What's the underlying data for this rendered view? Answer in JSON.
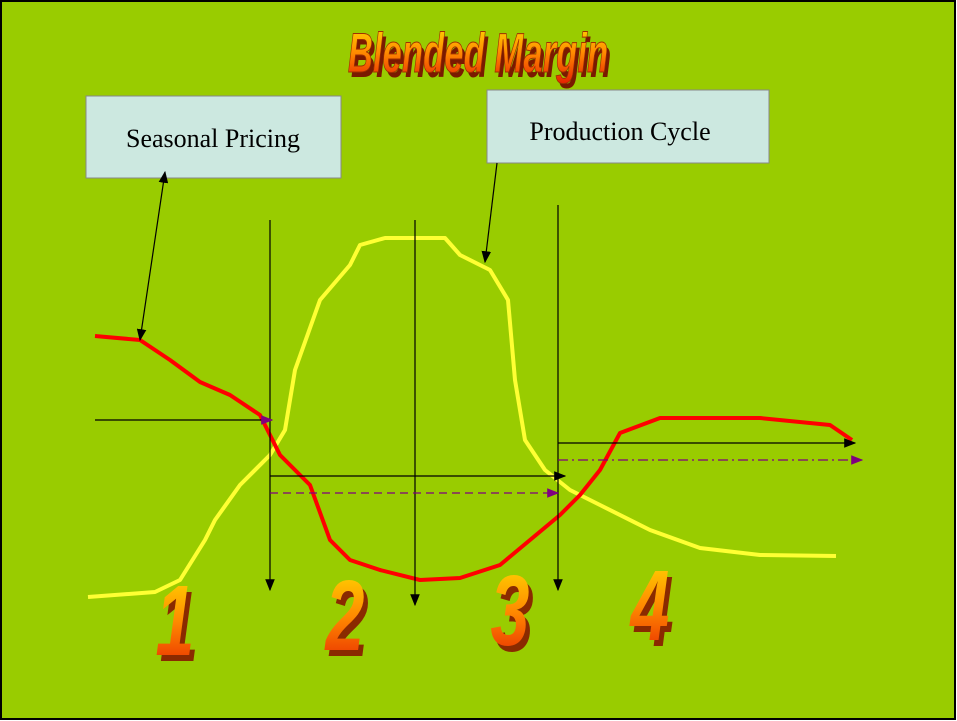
{
  "title": "Blended Margin",
  "labels": {
    "seasonal_pricing": "Seasonal Pricing",
    "production_cycle": "Production Cycle"
  },
  "phases": [
    "1",
    "2",
    "3",
    "4"
  ]
}
